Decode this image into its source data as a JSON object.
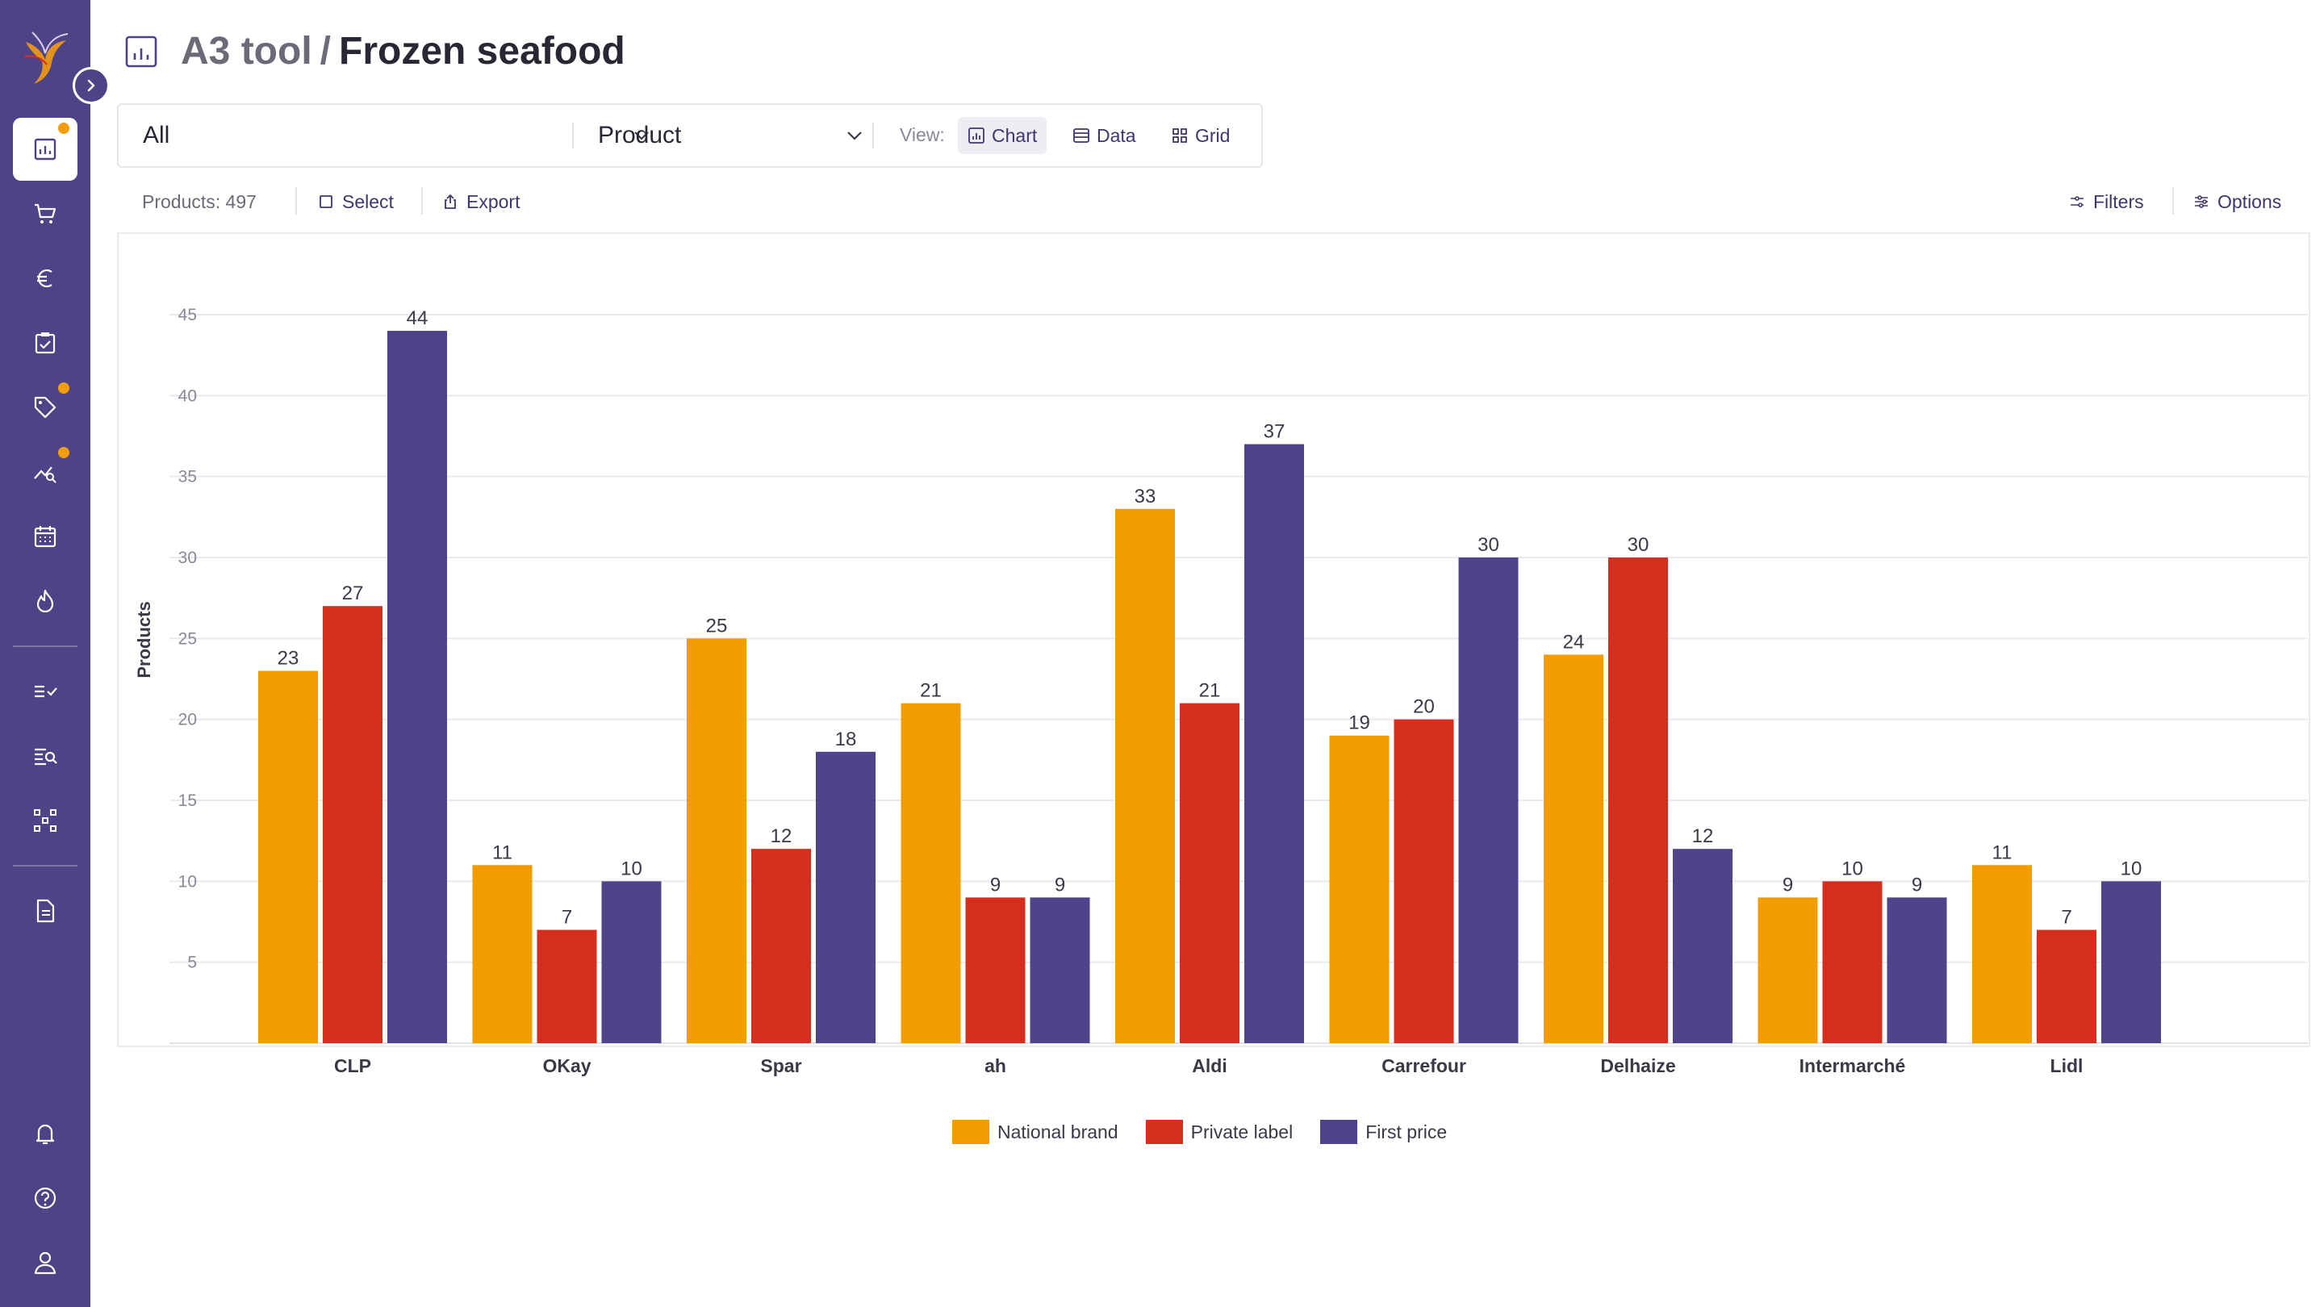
{
  "header": {
    "crumb": "A3 tool",
    "separator": "/",
    "current": "Frozen seafood"
  },
  "toolbar": {
    "filter_value": "All",
    "group_value": "Product",
    "view_label": "View:",
    "views": [
      {
        "label": "Chart",
        "active": true
      },
      {
        "label": "Data",
        "active": false
      },
      {
        "label": "Grid",
        "active": false
      }
    ]
  },
  "subbar": {
    "products_count": "Products: 497",
    "select_label": "Select",
    "export_label": "Export",
    "filters_label": "Filters",
    "options_label": "Options"
  },
  "sidebar": {
    "items": [
      {
        "icon": "chart-icon",
        "active": true,
        "badge": true
      },
      {
        "icon": "cart-icon",
        "active": false,
        "badge": false
      },
      {
        "icon": "euro-icon",
        "active": false,
        "badge": false
      },
      {
        "icon": "clipboard-check-icon",
        "active": false,
        "badge": false
      },
      {
        "icon": "tag-icon",
        "active": false,
        "badge": true
      },
      {
        "icon": "trend-search-icon",
        "active": false,
        "badge": true
      },
      {
        "icon": "calendar-icon",
        "active": false,
        "badge": false
      },
      {
        "icon": "flame-icon",
        "active": false,
        "badge": false
      },
      {
        "icon": "list-check-icon",
        "active": false,
        "badge": false
      },
      {
        "icon": "list-search-icon",
        "active": false,
        "badge": false
      },
      {
        "icon": "hierarchy-icon",
        "active": false,
        "badge": false
      },
      {
        "icon": "document-icon",
        "active": false,
        "badge": false
      },
      {
        "icon": "bell-icon",
        "active": false,
        "badge": false
      },
      {
        "icon": "help-icon",
        "active": false,
        "badge": false
      },
      {
        "icon": "user-icon",
        "active": false,
        "badge": false
      }
    ]
  },
  "colors": {
    "sidebar": "#4f4388",
    "national": "#f39c00",
    "private": "#d52d1e",
    "first": "#504389"
  },
  "chart_data": {
    "type": "bar",
    "title": "",
    "xlabel": "",
    "ylabel": "Products",
    "ylim": [
      0,
      45
    ],
    "yticks": [
      5,
      10,
      15,
      20,
      25,
      30,
      35,
      40,
      45
    ],
    "grid": true,
    "legend_position": "bottom-center",
    "categories": [
      "CLP",
      "OKay",
      "Spar",
      "ah",
      "Aldi",
      "Carrefour",
      "Delhaize",
      "Intermarché",
      "Lidl"
    ],
    "series": [
      {
        "name": "National brand",
        "color": "#f39c00",
        "values": [
          23,
          11,
          25,
          21,
          33,
          19,
          24,
          9,
          11
        ]
      },
      {
        "name": "Private label",
        "color": "#d52d1e",
        "values": [
          27,
          7,
          12,
          9,
          21,
          20,
          30,
          10,
          7
        ]
      },
      {
        "name": "First price",
        "color": "#504389",
        "values": [
          44,
          10,
          18,
          9,
          37,
          30,
          12,
          9,
          10
        ]
      }
    ]
  }
}
